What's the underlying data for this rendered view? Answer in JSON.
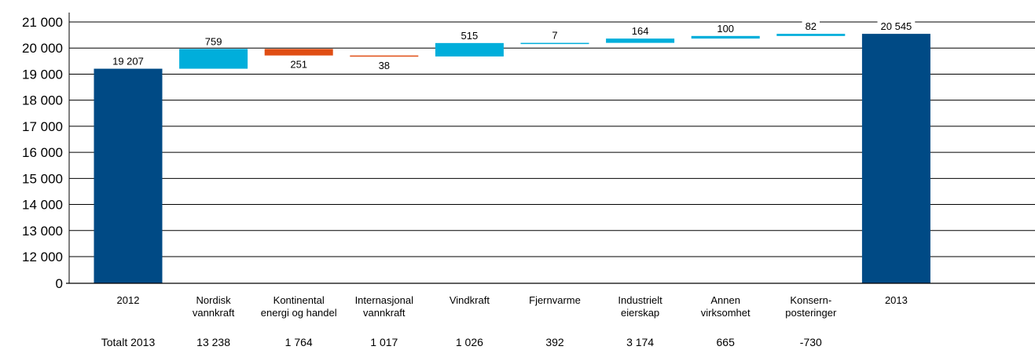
{
  "chart_data": {
    "type": "bar",
    "subtype": "waterfall",
    "categories": [
      [
        "2012"
      ],
      [
        "Nordisk",
        "vannkraft"
      ],
      [
        "Kontinental",
        "energi og handel"
      ],
      [
        "Internasjonal",
        "vannkraft"
      ],
      [
        "Vindkraft"
      ],
      [
        "Fjernvarme"
      ],
      [
        "Industrielt",
        "eierskap"
      ],
      [
        "Annen",
        "virksomhet"
      ],
      [
        "Konsern-",
        "posteringer"
      ],
      [
        "2013"
      ]
    ],
    "bars": [
      {
        "kind": "total",
        "bottom": 0,
        "top": 19207,
        "label": "19 207"
      },
      {
        "kind": "increase",
        "bottom": 19207,
        "top": 19966,
        "label": "759"
      },
      {
        "kind": "decrease",
        "bottom": 19715,
        "top": 19966,
        "label": "251"
      },
      {
        "kind": "decrease",
        "bottom": 19677,
        "top": 19715,
        "label": "38"
      },
      {
        "kind": "increase",
        "bottom": 19677,
        "top": 20192,
        "label": "515"
      },
      {
        "kind": "increase",
        "bottom": 20192,
        "top": 20199,
        "label": "7"
      },
      {
        "kind": "increase",
        "bottom": 20199,
        "top": 20363,
        "label": "164"
      },
      {
        "kind": "increase",
        "bottom": 20363,
        "top": 20463,
        "label": "100"
      },
      {
        "kind": "increase",
        "bottom": 20463,
        "top": 20545,
        "label": "82"
      },
      {
        "kind": "total",
        "bottom": 0,
        "top": 20545,
        "label": "20 545"
      }
    ],
    "y_ticks": [
      {
        "value": 0,
        "label": "0"
      },
      {
        "value": 12000,
        "label": "12 000"
      },
      {
        "value": 13000,
        "label": "13 000"
      },
      {
        "value": 14000,
        "label": "14 000"
      },
      {
        "value": 15000,
        "label": "15 000"
      },
      {
        "value": 16000,
        "label": "16 000"
      },
      {
        "value": 17000,
        "label": "17 000"
      },
      {
        "value": 18000,
        "label": "18 000"
      },
      {
        "value": 19000,
        "label": "19 000"
      },
      {
        "value": 20000,
        "label": "20 000"
      },
      {
        "value": 21000,
        "label": "21 000"
      }
    ],
    "axis_break": {
      "from": 0,
      "to": 12000
    },
    "ylim": [
      0,
      21000
    ],
    "grid": true,
    "totals_row": [
      "Totalt 2013",
      "13 238",
      "1 764",
      "1 017",
      "1 026",
      "392",
      "3 174",
      "665",
      "-730",
      ""
    ],
    "colors": {
      "total": "#004a85",
      "increase": "#00aedb",
      "decrease": "#e04e14"
    },
    "title": "",
    "xlabel": "",
    "ylabel": ""
  }
}
